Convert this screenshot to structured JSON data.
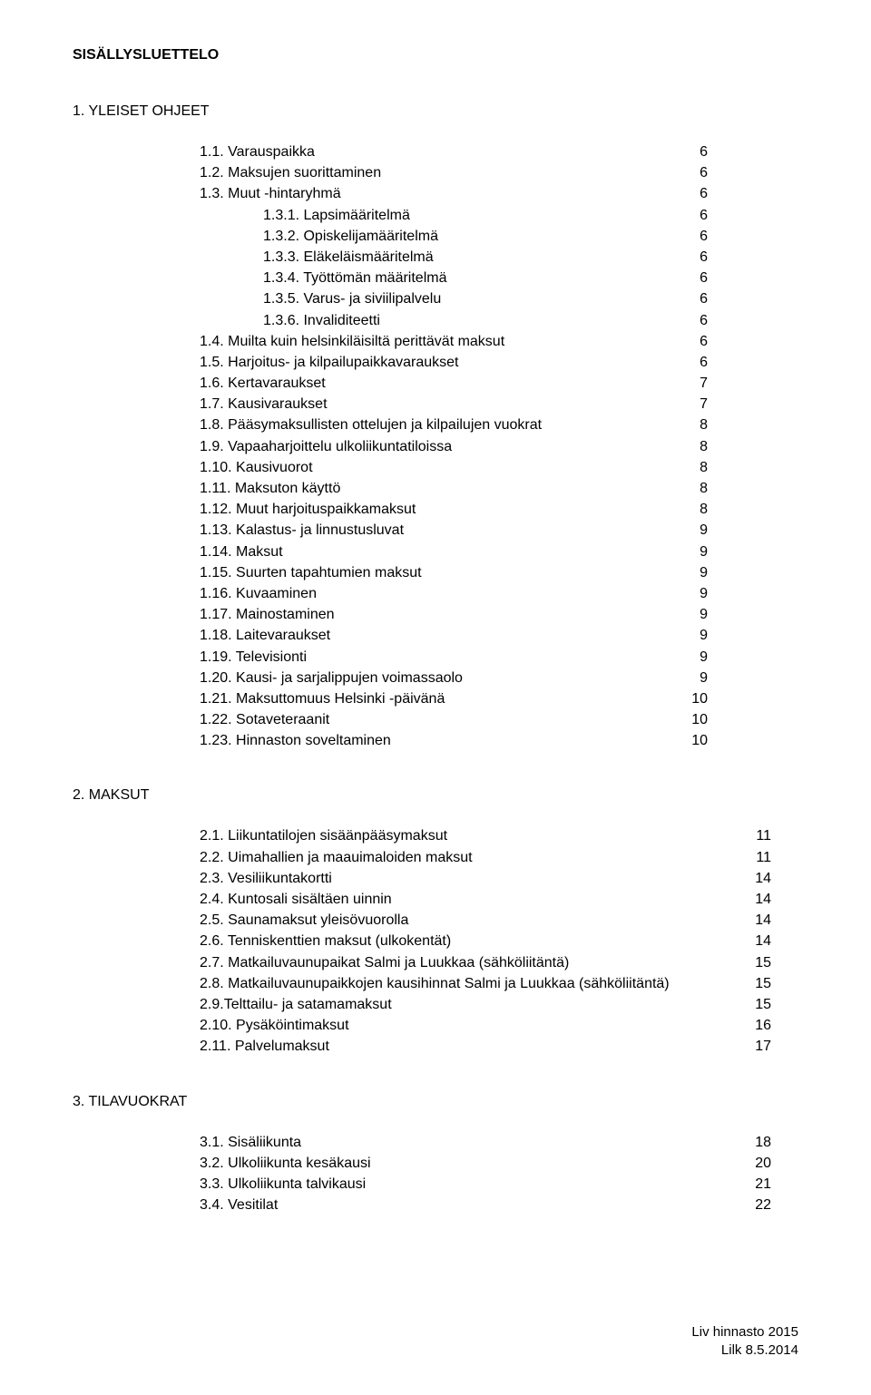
{
  "title": "SISÄLLYSLUETTELO",
  "footer": {
    "line1": "Liv hinnasto 2015",
    "line2": "Lilk 8.5.2014"
  },
  "sections": [
    {
      "heading": "1. YLEISET OHJEET",
      "rowWidthClass": "pagecol-a",
      "items": [
        {
          "label": "1.1. Varauspaikka",
          "page": "6",
          "indent": "indent-1"
        },
        {
          "label": "1.2. Maksujen suorittaminen",
          "page": "6",
          "indent": "indent-1"
        },
        {
          "label": "1.3. Muut -hintaryhmä",
          "page": "6",
          "indent": "indent-1"
        },
        {
          "label": "1.3.1. Lapsimääritelmä",
          "page": "6",
          "indent": "indent-2"
        },
        {
          "label": "1.3.2. Opiskelijamääritelmä",
          "page": "6",
          "indent": "indent-2"
        },
        {
          "label": "1.3.3. Eläkeläismääritelmä",
          "page": "6",
          "indent": "indent-2"
        },
        {
          "label": "1.3.4. Työttömän määritelmä",
          "page": "6",
          "indent": "indent-2"
        },
        {
          "label": "1.3.5. Varus- ja siviilipalvelu",
          "page": "6",
          "indent": "indent-2"
        },
        {
          "label": "1.3.6. Invaliditeetti",
          "page": "6",
          "indent": "indent-2"
        },
        {
          "label": "1.4. Muilta kuin helsinkiläisiltä perittävät maksut",
          "page": "6",
          "indent": "indent-1"
        },
        {
          "label": "1.5. Harjoitus- ja kilpailupaikkavaraukset",
          "page": "6",
          "indent": "indent-1"
        },
        {
          "label": "1.6. Kertavaraukset",
          "page": "7",
          "indent": "indent-1"
        },
        {
          "label": "1.7. Kausivaraukset",
          "page": "7",
          "indent": "indent-1"
        },
        {
          "label": "1.8. Pääsymaksullisten ottelujen ja kilpailujen vuokrat",
          "page": "8",
          "indent": "indent-1"
        },
        {
          "label": "1.9. Vapaaharjoittelu ulkoliikuntatiloissa",
          "page": "8",
          "indent": "indent-1"
        },
        {
          "label": "1.10. Kausivuorot",
          "page": "8",
          "indent": "indent-1"
        },
        {
          "label": "1.11. Maksuton käyttö",
          "page": "8",
          "indent": "indent-1"
        },
        {
          "label": "1.12. Muut harjoituspaikkamaksut",
          "page": "8",
          "indent": "indent-1"
        },
        {
          "label": "1.13. Kalastus- ja linnustusluvat",
          "page": "9",
          "indent": "indent-1"
        },
        {
          "label": "1.14. Maksut",
          "page": "9",
          "indent": "indent-1"
        },
        {
          "label": "1.15. Suurten tapahtumien maksut",
          "page": "9",
          "indent": "indent-1"
        },
        {
          "label": "1.16. Kuvaaminen",
          "page": "9",
          "indent": "indent-1"
        },
        {
          "label": "1.17. Mainostaminen",
          "page": "9",
          "indent": "indent-1"
        },
        {
          "label": "1.18. Laitevaraukset",
          "page": "9",
          "indent": "indent-1"
        },
        {
          "label": "1.19. Televisionti",
          "page": "9",
          "indent": "indent-1"
        },
        {
          "label": "1.20. Kausi- ja sarjalippujen voimassaolo",
          "page": "9",
          "indent": "indent-1"
        },
        {
          "label": "1.21. Maksuttomuus Helsinki -päivänä",
          "page": "10",
          "indent": "indent-1"
        },
        {
          "label": "1.22. Sotaveteraanit",
          "page": "10",
          "indent": "indent-1"
        },
        {
          "label": "1.23. Hinnaston soveltaminen",
          "page": "10",
          "indent": "indent-1"
        }
      ]
    },
    {
      "heading": "2. MAKSUT",
      "rowWidthClass": "pagecol-b",
      "items": [
        {
          "label": "2.1. Liikuntatilojen sisäänpääsymaksut",
          "page": "11",
          "indent": "indent-1b"
        },
        {
          "label": "2.2. Uimahallien ja maauimaloiden maksut",
          "page": "11",
          "indent": "indent-1b"
        },
        {
          "label": "2.3. Vesiliikuntakortti",
          "page": "14",
          "indent": "indent-1b"
        },
        {
          "label": "2.4. Kuntosali sisältäen uinnin",
          "page": "14",
          "indent": "indent-1b"
        },
        {
          "label": "2.5. Saunamaksut yleisövuorolla",
          "page": "14",
          "indent": "indent-1b"
        },
        {
          "label": "2.6. Tenniskenttien maksut (ulkokentät)",
          "page": "14",
          "indent": "indent-1b"
        },
        {
          "label": "2.7. Matkailuvaunupaikat Salmi ja Luukkaa (sähköliitäntä)",
          "page": "15",
          "indent": "indent-1b"
        },
        {
          "label": "2.8. Matkailuvaunupaikkojen kausihinnat Salmi ja Luukkaa (sähköliitäntä)",
          "page": "15",
          "indent": "indent-1b"
        },
        {
          "label": "2.9.Telttailu- ja satamamaksut",
          "page": "15",
          "indent": "indent-1b"
        },
        {
          "label": "2.10. Pysäköintimaksut",
          "page": "16",
          "indent": "indent-1b"
        },
        {
          "label": "2.11. Palvelumaksut",
          "page": "17",
          "indent": "indent-1b"
        }
      ]
    },
    {
      "heading": "3. TILAVUOKRAT",
      "rowWidthClass": "pagecol-b",
      "items": [
        {
          "label": "3.1. Sisäliikunta",
          "page": "18",
          "indent": "indent-1b"
        },
        {
          "label": "3.2. Ulkoliikunta kesäkausi",
          "page": "20",
          "indent": "indent-1b"
        },
        {
          "label": "3.3. Ulkoliikunta talvikausi",
          "page": "21",
          "indent": "indent-1b"
        },
        {
          "label": "3.4. Vesitilat",
          "page": "22",
          "indent": "indent-1b"
        }
      ]
    }
  ]
}
